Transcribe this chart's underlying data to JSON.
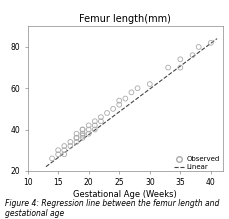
{
  "title": "Femur length(mm)",
  "xlabel": "Gestational Age (Weeks)",
  "ylabel": "",
  "xlim": [
    13,
    42
  ],
  "ylim": [
    20,
    90
  ],
  "xticks": [
    10,
    15,
    20,
    25,
    30,
    35,
    40
  ],
  "yticks": [
    20,
    40,
    60,
    80
  ],
  "scatter_x": [
    14,
    15,
    15,
    16,
    16,
    16,
    17,
    17,
    18,
    18,
    18,
    18,
    19,
    19,
    19,
    19,
    19,
    19,
    20,
    20,
    20,
    21,
    21,
    21,
    22,
    22,
    23,
    24,
    25,
    25,
    26,
    27,
    28,
    30,
    33,
    35,
    35,
    37,
    38,
    40
  ],
  "scatter_y": [
    26,
    28,
    30,
    28,
    30,
    32,
    32,
    34,
    34,
    36,
    36,
    38,
    36,
    37,
    38,
    38,
    40,
    40,
    38,
    40,
    42,
    40,
    42,
    44,
    44,
    46,
    48,
    50,
    52,
    54,
    55,
    58,
    60,
    62,
    70,
    70,
    74,
    76,
    80,
    82
  ],
  "line_x": [
    13,
    41
  ],
  "line_y": [
    22,
    84
  ],
  "dot_color": "#aaaaaa",
  "line_color": "#444444",
  "background_color": "#ffffff",
  "caption": "Figure 4: Regression line between the femur length and gestational age",
  "legend_observed": "Observed",
  "legend_linear": "Linear",
  "title_fontsize": 7,
  "axis_fontsize": 6,
  "tick_fontsize": 5.5,
  "caption_fontsize": 5.5
}
